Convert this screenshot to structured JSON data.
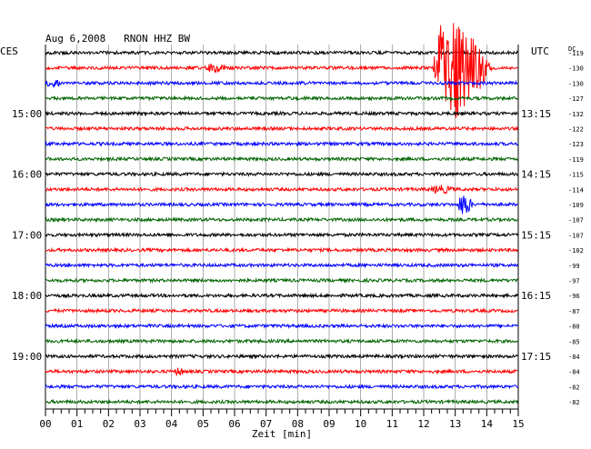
{
  "chart_data": {
    "type": "line",
    "title": "Aug 6,2008   RNON HHZ BW",
    "left_timezone": "CES",
    "right_timezone": "UTC",
    "dc_label": "DC",
    "xlabel": "Zeit [min]",
    "x_ticks": [
      "00",
      "01",
      "02",
      "03",
      "04",
      "05",
      "06",
      "07",
      "08",
      "09",
      "10",
      "11",
      "12",
      "13",
      "14",
      "15"
    ],
    "xlim": [
      0,
      15
    ],
    "trace_colors": [
      "#000000",
      "#ff0000",
      "#0000ff",
      "#006400"
    ],
    "left_hour_labels": [
      {
        "trace": 4,
        "label": "15:00"
      },
      {
        "trace": 8,
        "label": "16:00"
      },
      {
        "trace": 12,
        "label": "17:00"
      },
      {
        "trace": 16,
        "label": "18:00"
      },
      {
        "trace": 20,
        "label": "19:00"
      }
    ],
    "right_hour_labels": [
      {
        "trace": 4,
        "label": "13:15"
      },
      {
        "trace": 8,
        "label": "14:15"
      },
      {
        "trace": 12,
        "label": "15:15"
      },
      {
        "trace": 16,
        "label": "16:15"
      },
      {
        "trace": 20,
        "label": "17:15"
      }
    ],
    "dc_offsets": [
      -119,
      -130,
      -130,
      -127,
      -132,
      -122,
      -123,
      -119,
      -115,
      -114,
      -109,
      -107,
      -107,
      -102,
      -99,
      -97,
      -96,
      -87,
      -80,
      -85,
      -84,
      -84,
      -82,
      -82
    ],
    "events": [
      {
        "trace": 1,
        "minute_start": 12.3,
        "minute_end": 14.2,
        "amplitude": "large",
        "label": ""
      },
      {
        "trace": 1,
        "minute_start": 5.0,
        "minute_end": 6.2,
        "amplitude": "small",
        "label": ""
      },
      {
        "trace": 2,
        "minute_start": 0.0,
        "minute_end": 0.8,
        "amplitude": "small",
        "label": ""
      },
      {
        "trace": 9,
        "minute_start": 12.2,
        "minute_end": 13.2,
        "amplitude": "small",
        "label": ""
      },
      {
        "trace": 10,
        "minute_start": 13.1,
        "minute_end": 13.6,
        "amplitude": "medium",
        "label": ""
      },
      {
        "trace": 21,
        "minute_start": 4.1,
        "minute_end": 4.5,
        "amplitude": "small",
        "label": ""
      }
    ],
    "grid": true,
    "n_traces": 24
  }
}
